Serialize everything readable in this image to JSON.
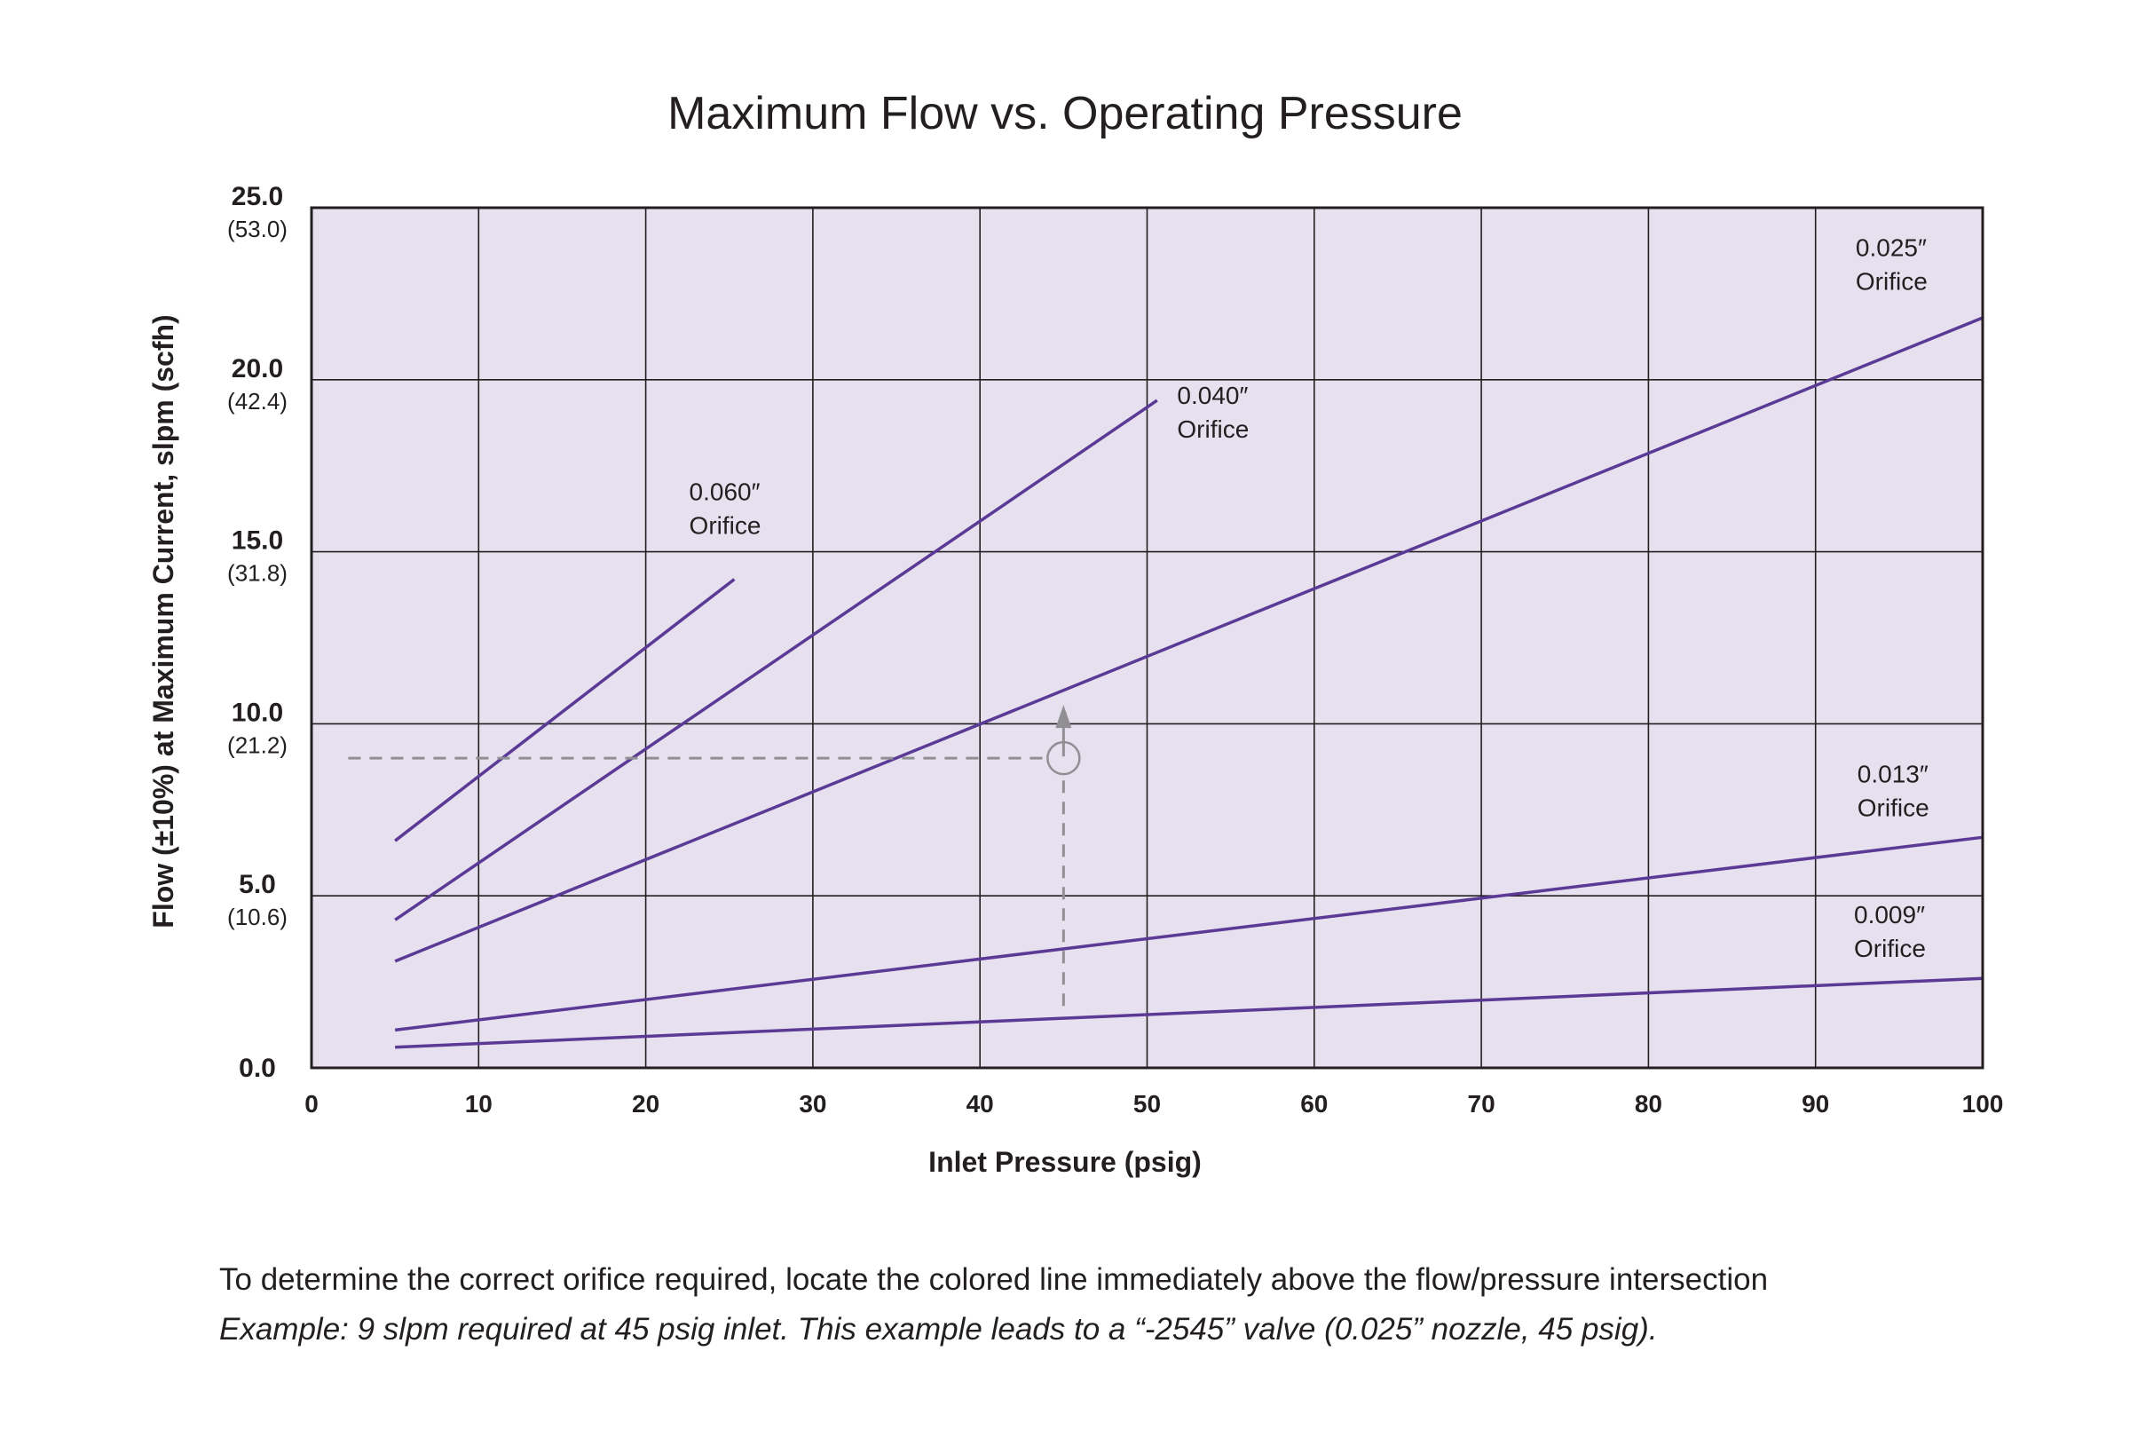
{
  "chart_data": {
    "type": "line",
    "title": "Maximum Flow vs. Operating Pressure",
    "xlabel": "Inlet Pressure (psig)",
    "ylabel": "Flow (±10%) at Maximum Current, slpm (scfh)",
    "xlim": [
      0,
      100
    ],
    "ylim": [
      0,
      25
    ],
    "grid": true,
    "x_ticks": [
      {
        "value": 0,
        "label": "0"
      },
      {
        "value": 10,
        "label": "10"
      },
      {
        "value": 20,
        "label": "20"
      },
      {
        "value": 30,
        "label": "30"
      },
      {
        "value": 40,
        "label": "40"
      },
      {
        "value": 50,
        "label": "50"
      },
      {
        "value": 60,
        "label": "60"
      },
      {
        "value": 70,
        "label": "70"
      },
      {
        "value": 80,
        "label": "80"
      },
      {
        "value": 90,
        "label": "90"
      },
      {
        "value": 100,
        "label": "100"
      }
    ],
    "y_ticks": [
      {
        "value": 0,
        "label": "0.0",
        "sublabel": ""
      },
      {
        "value": 5,
        "label": "5.0",
        "sublabel": "(10.6)"
      },
      {
        "value": 10,
        "label": "10.0",
        "sublabel": "(21.2)"
      },
      {
        "value": 15,
        "label": "15.0",
        "sublabel": "(31.8)"
      },
      {
        "value": 20,
        "label": "20.0",
        "sublabel": "(42.4)"
      },
      {
        "value": 25,
        "label": "25.0",
        "sublabel": "(53.0)"
      }
    ],
    "series": [
      {
        "name": "0.060″ Orifice",
        "label_lines": [
          "0.060″",
          "Orifice"
        ],
        "x": [
          5,
          25.3
        ],
        "y": [
          6.6,
          14.2
        ],
        "label_at": [
          22.6,
          16.5
        ]
      },
      {
        "name": "0.040″ Orifice",
        "label_lines": [
          "0.040″",
          "Orifice"
        ],
        "x": [
          5,
          50.6
        ],
        "y": [
          4.3,
          19.4
        ],
        "label_at": [
          51.8,
          19.3
        ]
      },
      {
        "name": "0.025″ Orifice",
        "label_lines": [
          "0.025″",
          "Orifice"
        ],
        "x": [
          5,
          100
        ],
        "y": [
          3.1,
          21.8
        ],
        "label_at": [
          92.4,
          23.6
        ]
      },
      {
        "name": "0.013″ Orifice",
        "label_lines": [
          "0.013″",
          "Orifice"
        ],
        "x": [
          5,
          100
        ],
        "y": [
          1.1,
          6.7
        ],
        "label_at": [
          92.5,
          8.3
        ]
      },
      {
        "name": "0.009″ Orifice",
        "label_lines": [
          "0.009″",
          "Orifice"
        ],
        "x": [
          5,
          100
        ],
        "y": [
          0.6,
          2.6
        ],
        "label_at": [
          92.3,
          4.2
        ]
      }
    ],
    "annotation": {
      "x": 45,
      "y": 9
    },
    "colors": {
      "series": "#5b3a96",
      "plot_background": "#e7e0ef",
      "grid": "#231f20",
      "annotation": "#8f8f94"
    }
  },
  "footnote": {
    "main": "To determine the correct orifice required, locate the colored line immediately above the flow/pressure intersection",
    "example": "Example: 9 slpm required at 45 psig inlet. This example leads to a “-2545” valve (0.025” nozzle, 45 psig)."
  }
}
